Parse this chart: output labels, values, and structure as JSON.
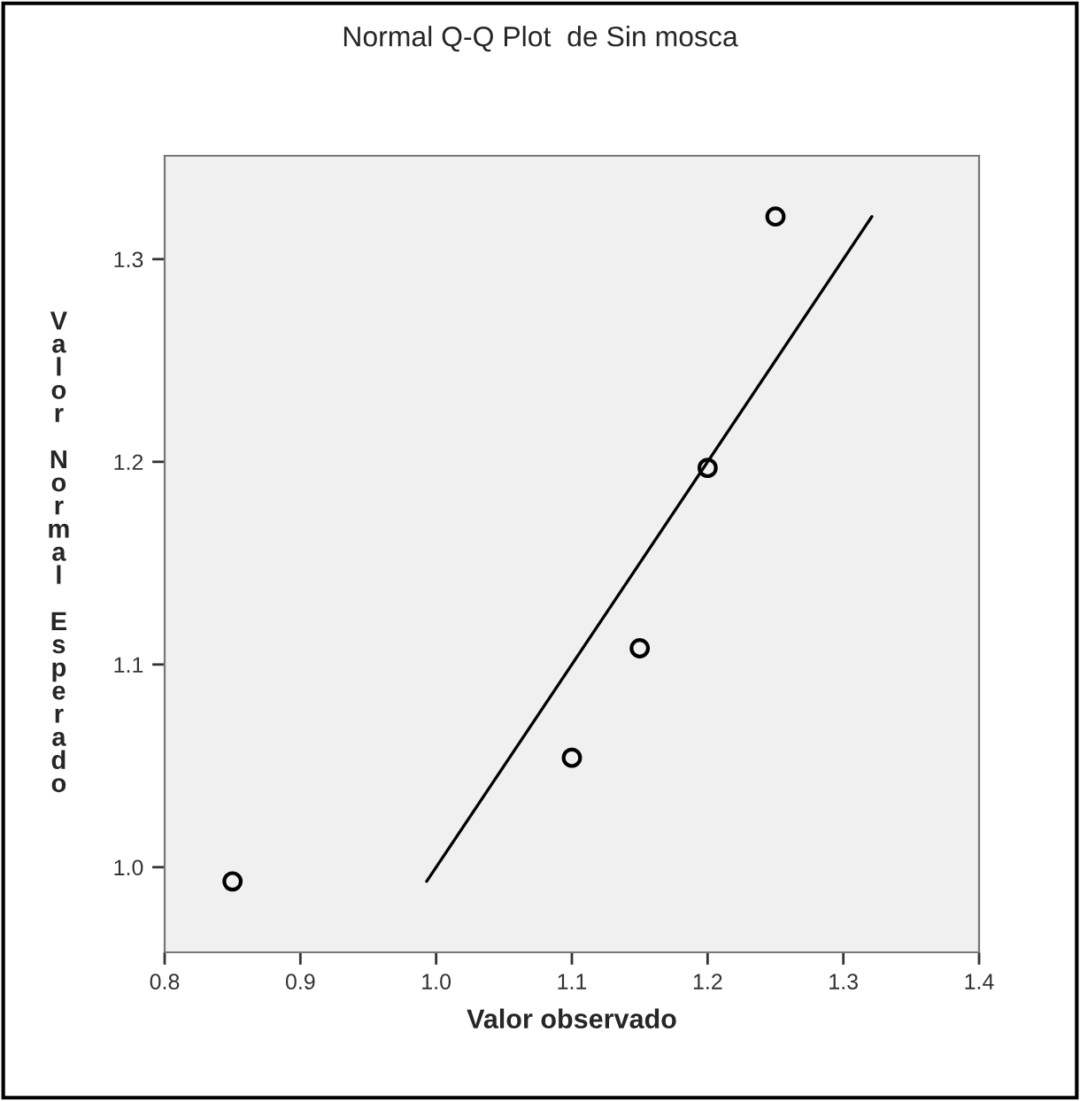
{
  "chart_data": {
    "type": "scatter",
    "title": "Normal Q-Q Plot  de Sin mosca",
    "xlabel": "Valor observado",
    "ylabel": "Valor Normal Esperado",
    "series": [
      {
        "color": "#000000",
        "x": [
          0.85,
          1.1,
          1.15,
          1.2,
          1.25
        ],
        "values": [
          0.993,
          1.054,
          1.108,
          1.197,
          1.321
        ],
        "marker": "circle"
      },
      {
        "type": "line",
        "color": "#000000",
        "x": [
          0.993,
          1.321
        ],
        "values": [
          0.993,
          1.321
        ],
        "marker": "none",
        "line_style": "solid"
      }
    ],
    "xlim": [
      0.8,
      1.4
    ],
    "ylim": [
      0.958,
      1.351
    ],
    "xticks": [
      {
        "value": 0.8,
        "label": "0.8"
      },
      {
        "value": 0.9,
        "label": "0.9"
      },
      {
        "value": 1.0,
        "label": "1.0"
      },
      {
        "value": 1.1,
        "label": "1.1"
      },
      {
        "value": 1.2,
        "label": "1.2"
      },
      {
        "value": 1.3,
        "label": "1.3"
      },
      {
        "value": 1.4,
        "label": "1.4"
      }
    ],
    "yticks": [
      {
        "value": 1.0,
        "label": "1.0"
      },
      {
        "value": 1.1,
        "label": "1.1"
      },
      {
        "value": 1.2,
        "label": "1.2"
      },
      {
        "value": 1.3,
        "label": "1.3"
      }
    ],
    "grid": false
  }
}
